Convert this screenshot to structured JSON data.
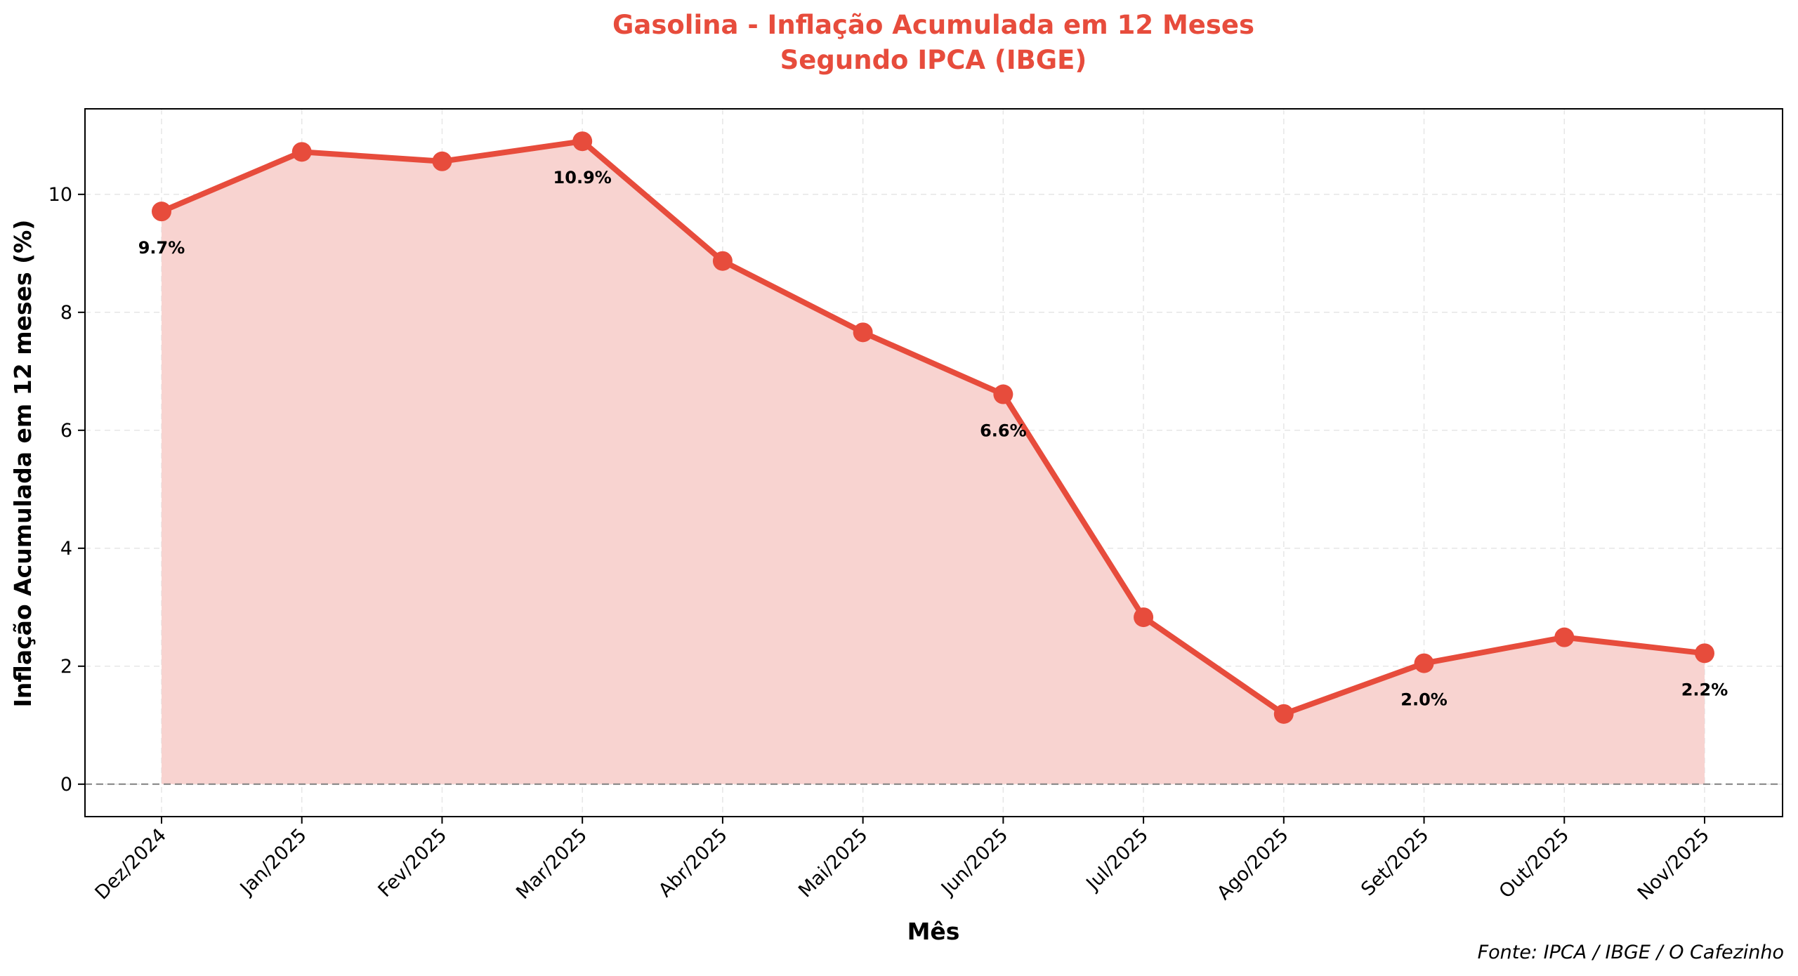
{
  "chart_data": {
    "type": "area",
    "title": [
      "Gasolina - Inflação Acumulada em 12 Meses",
      "Segundo IPCA (IBGE)"
    ],
    "xlabel": "Mês",
    "ylabel": "Inflação Acumulada em 12 meses (%)",
    "categories": [
      "Dez/2024",
      "Jan/2025",
      "Fev/2025",
      "Mar/2025",
      "Abr/2025",
      "Mai/2025",
      "Jun/2025",
      "Jul/2025",
      "Ago/2025",
      "Set/2025",
      "Out/2025",
      "Nov/2025"
    ],
    "values": [
      9.71,
      10.72,
      10.56,
      10.9,
      8.87,
      7.66,
      6.61,
      2.83,
      1.19,
      2.05,
      2.49,
      2.22
    ],
    "data_labels": [
      {
        "index": 0,
        "text": "9.7%",
        "position": "below"
      },
      {
        "index": 3,
        "text": "10.9%",
        "position": "below"
      },
      {
        "index": 6,
        "text": "6.6%",
        "position": "below"
      },
      {
        "index": 9,
        "text": "2.0%",
        "position": "below"
      },
      {
        "index": 11,
        "text": "2.2%",
        "position": "below"
      }
    ],
    "ylim": [
      -0.55,
      11.45
    ],
    "yticks": [
      0,
      2,
      4,
      6,
      8,
      10
    ],
    "grid": true,
    "zero_line": true,
    "source": "Fonte: IPCA / IBGE / O Cafezinho",
    "colors": {
      "line": "#e74c3c",
      "fill": "#f8d3d0",
      "title": "#e74c3c",
      "grid": "#e6e6e6",
      "zero_line": "#808080"
    }
  }
}
